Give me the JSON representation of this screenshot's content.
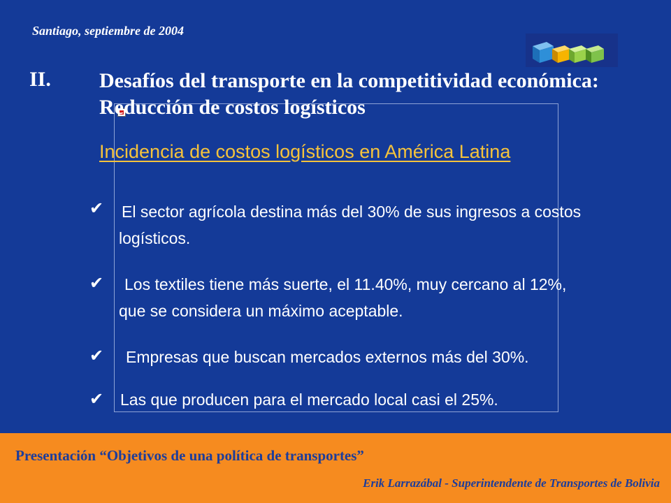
{
  "header": {
    "date": "Santiago, septiembre de 2004"
  },
  "logo": {
    "icon": "cubes-logo-icon",
    "colors": [
      "#2e8fd8",
      "#f6b400",
      "#9ad24b",
      "#7fc24b"
    ]
  },
  "slide": {
    "section_number": "II.",
    "title": "Desafíos del transporte en la competitividad económica: Reducción de costos logísticos",
    "subtitle": "Incidencia de costos logísticos en América Latina",
    "bullet_icon": "check-icon",
    "bullets": [
      "El sector agrícola destina más del 30% de sus ingresos a costos logísticos.",
      "Los textiles tiene más suerte, el 11.40%, muy cercano al 12%, que se considera un máximo aceptable.",
      "Empresas que buscan mercados externos más del 30%.",
      "Las que producen para el mercado local casi el 25%."
    ]
  },
  "footer": {
    "title": "Presentación “Objetivos de una política de transportes”",
    "author": "Erik Larrazábal  - Superintendente de Transportes de Bolivia"
  },
  "colors": {
    "background": "#143a98",
    "footer": "#f68b1f",
    "subtitle": "#f6c33b",
    "footer_text": "#1d3d9b"
  }
}
